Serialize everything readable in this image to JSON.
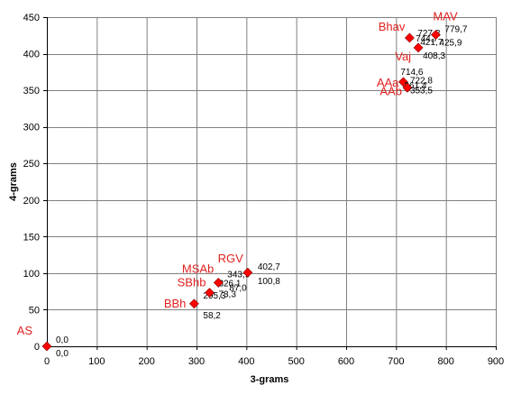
{
  "chart_data": {
    "type": "scatter",
    "title": "",
    "xlabel": "3-grams",
    "ylabel": "4-grams",
    "xlim": [
      0,
      900
    ],
    "ylim": [
      0,
      450
    ],
    "xticks": [
      0,
      100,
      200,
      300,
      400,
      500,
      600,
      700,
      800,
      900
    ],
    "yticks": [
      0,
      50,
      100,
      150,
      200,
      250,
      300,
      350,
      400,
      450
    ],
    "grid": true,
    "legend": "none",
    "marker": "diamond",
    "marker_color": "#ff0000",
    "label_color": "#e0201e",
    "points": [
      {
        "name": "AS",
        "x": 0.0,
        "y": 0.0,
        "xtext": "0,0",
        "ytext": "0,0"
      },
      {
        "name": "BBh",
        "x": 295.3,
        "y": 58.2,
        "xtext": "295,3",
        "ytext": "58,2"
      },
      {
        "name": "SBhb",
        "x": 326.1,
        "y": 73.3,
        "xtext": "326,1",
        "ytext": "73,3"
      },
      {
        "name": "MSAb",
        "x": 343.9,
        "y": 87.0,
        "xtext": "343,9",
        "ytext": "87,0"
      },
      {
        "name": "RGV",
        "x": 402.7,
        "y": 100.8,
        "xtext": "402,7",
        "ytext": "100,8"
      },
      {
        "name": "AAa",
        "x": 714.6,
        "y": 361.4,
        "xtext": "714,6",
        "ytext": "361,4"
      },
      {
        "name": "AAb",
        "x": 722.8,
        "y": 353.5,
        "xtext": "722,8",
        "ytext": "353,5"
      },
      {
        "name": "Vaj",
        "x": 744.7,
        "y": 408.3,
        "xtext": "744,7",
        "ytext": "408,3"
      },
      {
        "name": "Bhav",
        "x": 727.2,
        "y": 421.7,
        "xtext": "727,2",
        "ytext": "421,7"
      },
      {
        "name": "MAV",
        "x": 779.7,
        "y": 425.9,
        "xtext": "779,7",
        "ytext": "425,9"
      }
    ]
  }
}
